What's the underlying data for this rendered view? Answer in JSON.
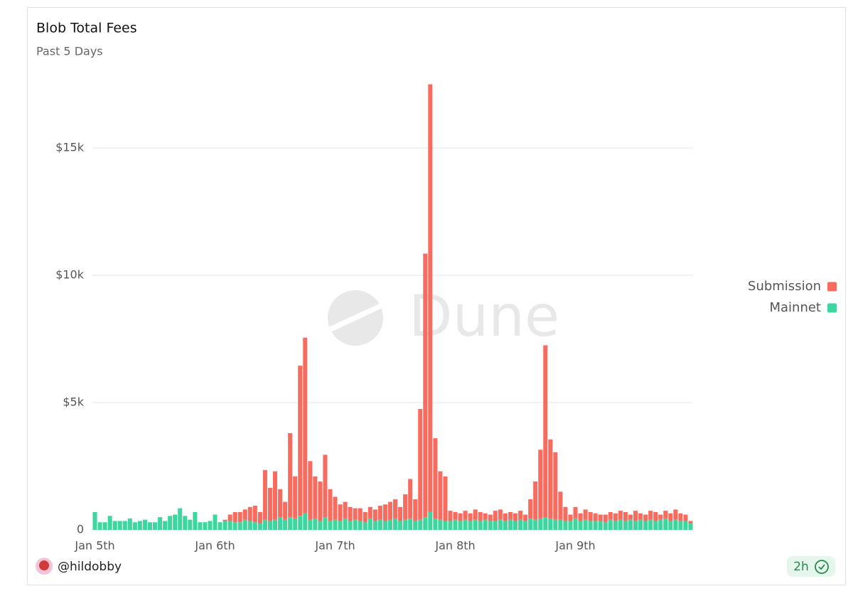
{
  "chart_data": {
    "type": "stacked_bar",
    "title": "Blob Total Fees",
    "subtitle": "Past 5 Days",
    "watermark": "Dune",
    "author": "@hildobby",
    "age": "2h",
    "categories": [
      "Jan 5th",
      null,
      null,
      null,
      null,
      null,
      null,
      null,
      null,
      null,
      null,
      null,
      null,
      null,
      null,
      null,
      null,
      null,
      null,
      null,
      null,
      null,
      null,
      null,
      "Jan 6th",
      null,
      null,
      null,
      null,
      null,
      null,
      null,
      null,
      null,
      null,
      null,
      null,
      null,
      null,
      null,
      null,
      null,
      null,
      null,
      null,
      null,
      null,
      null,
      "Jan 7th",
      null,
      null,
      null,
      null,
      null,
      null,
      null,
      null,
      null,
      null,
      null,
      null,
      null,
      null,
      null,
      null,
      null,
      null,
      null,
      null,
      null,
      null,
      null,
      "Jan 8th",
      null,
      null,
      null,
      null,
      null,
      null,
      null,
      null,
      null,
      null,
      null,
      null,
      null,
      null,
      null,
      null,
      null,
      null,
      null,
      null,
      null,
      null,
      null,
      "Jan 9th",
      null,
      null,
      null,
      null,
      null,
      null,
      null,
      null,
      null,
      null,
      null,
      null,
      null,
      null,
      null,
      null,
      null,
      null,
      null,
      null,
      null,
      null,
      null
    ],
    "series": [
      {
        "name": "Submission",
        "color": "#f86c60",
        "values": [
          0,
          0,
          0,
          0,
          0,
          0,
          0,
          0,
          0,
          0,
          0,
          0,
          0,
          0,
          0,
          0,
          0,
          0,
          0,
          0,
          0,
          0,
          0,
          0,
          0,
          0,
          50,
          250,
          400,
          400,
          400,
          550,
          650,
          450,
          1950,
          1300,
          1900,
          1100,
          700,
          3300,
          1650,
          5900,
          6900,
          2300,
          1650,
          1550,
          2450,
          1250,
          900,
          650,
          650,
          550,
          450,
          500,
          400,
          450,
          450,
          550,
          650,
          700,
          750,
          550,
          1000,
          1550,
          850,
          4350,
          10350,
          16800,
          3150,
          1900,
          1750,
          400,
          300,
          300,
          350,
          300,
          400,
          350,
          250,
          250,
          400,
          400,
          300,
          300,
          300,
          350,
          250,
          750,
          1500,
          2700,
          6750,
          3100,
          2650,
          1100,
          550,
          250,
          450,
          300,
          400,
          350,
          300,
          250,
          300,
          300,
          300,
          350,
          350,
          200,
          400,
          250,
          250,
          350,
          350,
          200,
          300,
          300,
          400,
          300,
          250,
          100
        ]
      },
      {
        "name": "Mainnet",
        "color": "#3ed69f",
        "values": [
          700,
          300,
          300,
          550,
          350,
          350,
          350,
          450,
          300,
          350,
          400,
          300,
          300,
          500,
          350,
          550,
          600,
          850,
          550,
          400,
          700,
          300,
          300,
          350,
          600,
          300,
          350,
          350,
          300,
          300,
          400,
          350,
          300,
          250,
          400,
          350,
          400,
          500,
          400,
          500,
          450,
          550,
          650,
          400,
          450,
          350,
          500,
          350,
          400,
          350,
          450,
          350,
          400,
          350,
          300,
          450,
          350,
          400,
          350,
          400,
          450,
          350,
          400,
          450,
          350,
          400,
          500,
          700,
          450,
          400,
          350,
          350,
          400,
          350,
          400,
          350,
          400,
          350,
          400,
          350,
          350,
          400,
          350,
          400,
          350,
          400,
          350,
          450,
          400,
          450,
          500,
          450,
          400,
          400,
          350,
          350,
          450,
          350,
          400,
          350,
          350,
          350,
          300,
          400,
          350,
          400,
          350,
          400,
          350,
          400,
          350,
          400,
          350,
          400,
          450,
          350,
          400,
          350,
          350,
          250
        ]
      }
    ],
    "ylim": [
      0,
      18000
    ],
    "yticks": [
      0,
      {
        "value": 5000,
        "label": "$5k"
      },
      {
        "value": 10000,
        "label": "$10k"
      },
      {
        "value": 15000,
        "label": "$15k"
      }
    ],
    "grid": true,
    "legend": "right"
  }
}
